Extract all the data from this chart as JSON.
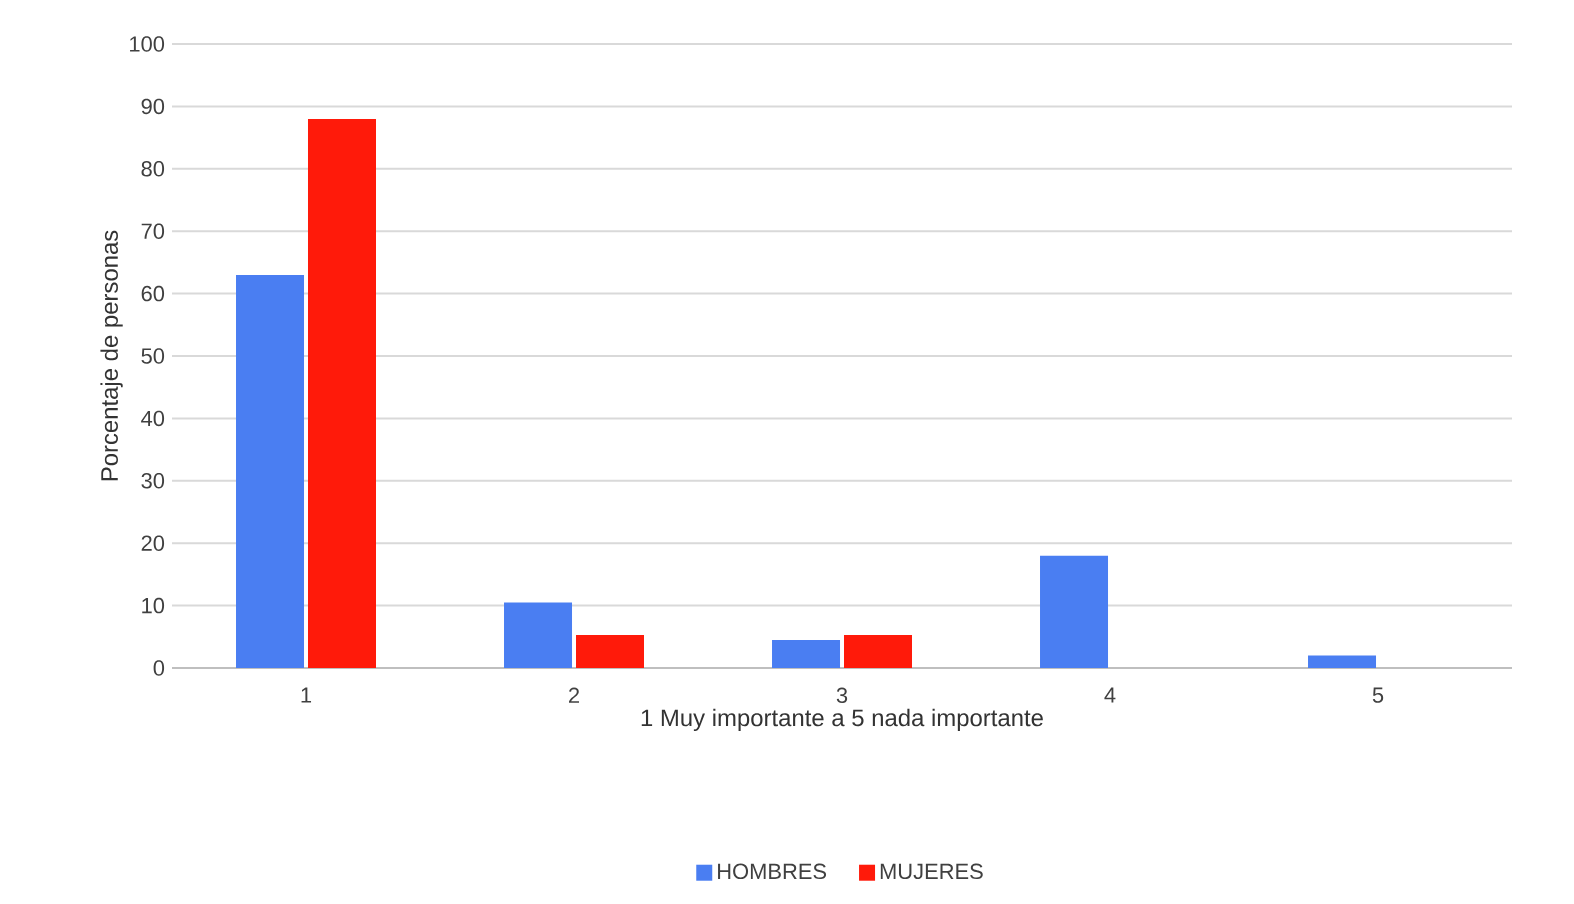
{
  "chart_data": {
    "type": "bar",
    "xlabel": "1 Muy importante a 5 nada importante",
    "ylabel": "Porcentaje de personas",
    "categories": [
      "1",
      "2",
      "3",
      "4",
      "5"
    ],
    "series": [
      {
        "name": "HOMBRES",
        "color": "#4a7ef2",
        "values": [
          63,
          10.5,
          4.5,
          18,
          2
        ]
      },
      {
        "name": "MUJERES",
        "color": "#ff1a0a",
        "values": [
          88,
          5.3,
          5.3,
          0,
          0
        ]
      }
    ],
    "ylim": [
      0,
      100
    ],
    "yticks": [
      0,
      10,
      20,
      30,
      40,
      50,
      60,
      70,
      80,
      90,
      100
    ],
    "grid": "y",
    "legend": "bottom"
  }
}
